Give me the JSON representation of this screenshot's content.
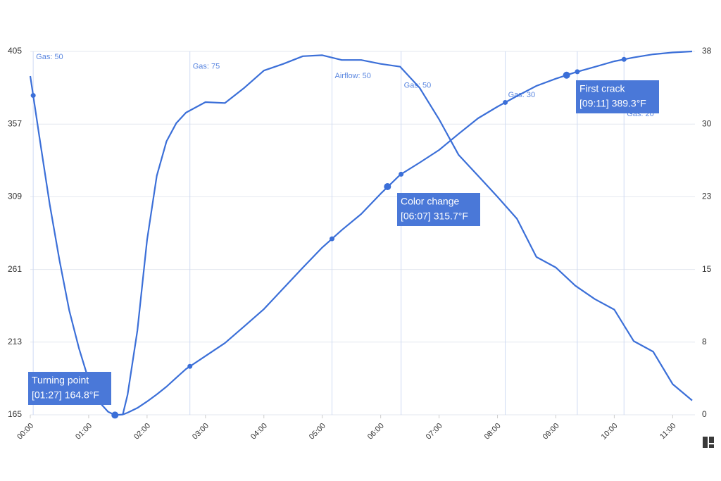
{
  "chart_data": {
    "type": "line",
    "x": [
      0,
      10,
      20,
      30,
      40,
      50,
      60,
      70,
      80,
      87,
      95,
      100,
      110,
      120,
      130,
      140,
      150,
      160,
      180,
      200,
      220,
      240,
      260,
      280,
      300,
      320,
      340,
      360,
      380,
      400,
      420,
      440,
      460,
      480,
      500,
      520,
      540,
      560,
      580,
      600,
      620,
      640,
      660,
      680
    ],
    "series": [
      {
        "color": "#3b6fd8",
        "axis": "y",
        "values": [
          388.7,
          346,
          304,
          267,
          234,
          209,
          188,
          174,
          167,
          164.8,
          165.2,
          166.4,
          169.5,
          173.8,
          178.5,
          183.6,
          189.5,
          195.3,
          203.8,
          212.4,
          223.5,
          234.8,
          248.5,
          262.2,
          275.5,
          287.0,
          297.6,
          311.0,
          323.5,
          331.5,
          339.9,
          350.5,
          360.8,
          368.5,
          375.5,
          382.2,
          387.0,
          391.2,
          394.8,
          398.5,
          401.0,
          403.1,
          404.3,
          405.0
        ]
      },
      {
        "color": "#3b6fd8",
        "axis": "y2",
        "values": [
          null,
          null,
          null,
          null,
          null,
          null,
          null,
          null,
          null,
          null,
          0,
          2.1,
          8.8,
          18.3,
          25.0,
          28.6,
          30.5,
          31.6,
          32.7,
          32.6,
          34.2,
          36.0,
          36.7,
          37.5,
          37.6,
          37.1,
          37.1,
          36.7,
          36.4,
          34.2,
          30.9,
          27.2,
          25.0,
          22.8,
          20.5,
          16.5,
          15.4,
          13.5,
          12.1,
          11.0,
          7.7,
          6.6,
          3.2,
          1.5
        ]
      }
    ],
    "xlim": [
      0,
      680
    ],
    "xticks": [
      {
        "value": 0,
        "label": "00:00"
      },
      {
        "value": 60,
        "label": "01:00"
      },
      {
        "value": 120,
        "label": "02:00"
      },
      {
        "value": 180,
        "label": "03:00"
      },
      {
        "value": 240,
        "label": "04:00"
      },
      {
        "value": 300,
        "label": "05:00"
      },
      {
        "value": 360,
        "label": "06:00"
      },
      {
        "value": 420,
        "label": "07:00"
      },
      {
        "value": 480,
        "label": "08:00"
      },
      {
        "value": 540,
        "label": "09:00"
      },
      {
        "value": 600,
        "label": "10:00"
      },
      {
        "value": 660,
        "label": "11:00"
      }
    ],
    "ylim": [
      165,
      405
    ],
    "yticks": [
      165,
      213,
      261,
      309,
      357,
      405
    ],
    "y2lim": [
      0,
      38
    ],
    "y2ticks": [
      0,
      {
        "value": 7.6,
        "label": "8"
      },
      {
        "value": 15.2,
        "label": "15"
      },
      {
        "value": 22.8,
        "label": "23"
      },
      {
        "value": 30.4,
        "label": "30"
      },
      38
    ],
    "grid": true,
    "events": [
      {
        "x": 3,
        "label": "Gas: 50"
      },
      {
        "x": 164,
        "label": "Gas: 75"
      },
      {
        "x": 310,
        "label": "Airflow: 50"
      },
      {
        "x": 381,
        "label": "Gas: 50"
      },
      {
        "x": 488,
        "label": "Gas: 30"
      },
      {
        "x": 562,
        "label": null
      },
      {
        "x": 610,
        "label": "Gas: 20"
      }
    ],
    "callouts": [
      {
        "title": "Turning point",
        "text": "[01:27] 164.8°F",
        "x": 87,
        "y": 164.8
      },
      {
        "title": "Color change",
        "text": "[06:07] 315.7°F",
        "x": 367,
        "y": 315.7
      },
      {
        "title": "First crack",
        "text": "[09:11] 389.3°F",
        "x": 551,
        "y": 389.3
      }
    ]
  }
}
